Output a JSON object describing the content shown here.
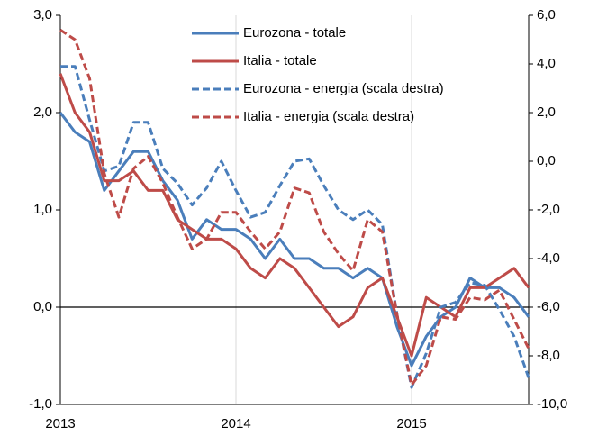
{
  "chart_data": {
    "type": "line",
    "categories": [
      "2013",
      null,
      null,
      null,
      null,
      null,
      null,
      null,
      null,
      null,
      null,
      null,
      "2014",
      null,
      null,
      null,
      null,
      null,
      null,
      null,
      null,
      null,
      null,
      null,
      "2015",
      null,
      null,
      null,
      null,
      null,
      null,
      null,
      null
    ],
    "ylim": [
      -1,
      3
    ],
    "yticks": [
      {
        "value": -1,
        "label": "-1,0"
      },
      {
        "value": 0,
        "label": "0,0"
      },
      {
        "value": 1,
        "label": "1,0"
      },
      {
        "value": 2,
        "label": "2,0"
      },
      {
        "value": 3,
        "label": "3,0"
      }
    ],
    "y2lim": [
      -10,
      6
    ],
    "y2ticks": [
      {
        "value": -10,
        "label": "-10,0"
      },
      {
        "value": -8,
        "label": "-8,0"
      },
      {
        "value": -6,
        "label": "-6,0"
      },
      {
        "value": -4,
        "label": "-4,0"
      },
      {
        "value": -2,
        "label": "-2,0"
      },
      {
        "value": 0,
        "label": "0,0"
      },
      {
        "value": 2,
        "label": "2,0"
      },
      {
        "value": 4,
        "label": "4,0"
      },
      {
        "value": 6,
        "label": "6,0"
      }
    ],
    "legend": "top",
    "series": [
      {
        "name": "Eurozona - totale",
        "color": "#4a7ebb",
        "dash": false,
        "values": [
          2.0,
          1.8,
          1.7,
          1.2,
          1.4,
          1.6,
          1.6,
          1.3,
          1.1,
          0.7,
          0.9,
          0.8,
          0.8,
          0.7,
          0.5,
          0.7,
          0.5,
          0.5,
          0.4,
          0.4,
          0.3,
          0.4,
          0.3,
          -0.2,
          -0.6,
          -0.3,
          -0.1,
          0.0,
          0.3,
          0.2,
          0.2,
          0.1,
          -0.1
        ]
      },
      {
        "name": "Italia - totale",
        "color": "#be4b48",
        "dash": false,
        "values": [
          2.4,
          2.0,
          1.8,
          1.3,
          1.3,
          1.4,
          1.2,
          1.2,
          0.9,
          0.8,
          0.7,
          0.7,
          0.6,
          0.4,
          0.3,
          0.5,
          0.4,
          0.2,
          0.0,
          -0.2,
          -0.1,
          0.2,
          0.3,
          -0.1,
          -0.5,
          0.1,
          0.0,
          -0.1,
          0.2,
          0.2,
          0.3,
          0.4,
          0.2
        ]
      },
      {
        "name": "Eurozona - energia (scala destra)",
        "color": "#4a7ebb",
        "dash": true,
        "axis": "y2",
        "values": [
          3.9,
          3.9,
          1.7,
          -0.4,
          -0.2,
          1.6,
          1.6,
          -0.3,
          -0.9,
          -1.8,
          -1.1,
          0.0,
          -1.2,
          -2.3,
          -2.1,
          -1.0,
          0.0,
          0.1,
          -1.0,
          -2.0,
          -2.4,
          -2.0,
          -2.6,
          -6.3,
          -9.3,
          -7.9,
          -6.0,
          -5.8,
          -5.0,
          -5.1,
          -6.1,
          -7.2,
          -8.9
        ]
      },
      {
        "name": "Italia - energia (scala destra)",
        "color": "#be4b48",
        "dash": true,
        "axis": "y2",
        "values": [
          5.4,
          5.0,
          3.4,
          -0.5,
          -2.3,
          -0.3,
          0.2,
          -0.9,
          -2.3,
          -3.6,
          -3.2,
          -2.1,
          -2.1,
          -2.9,
          -3.6,
          -2.9,
          -1.1,
          -1.3,
          -2.9,
          -3.8,
          -4.5,
          -2.4,
          -2.9,
          -6.3,
          -9.2,
          -8.4,
          -6.4,
          -6.5,
          -5.6,
          -5.7,
          -5.3,
          -6.5,
          -7.7
        ]
      }
    ]
  }
}
